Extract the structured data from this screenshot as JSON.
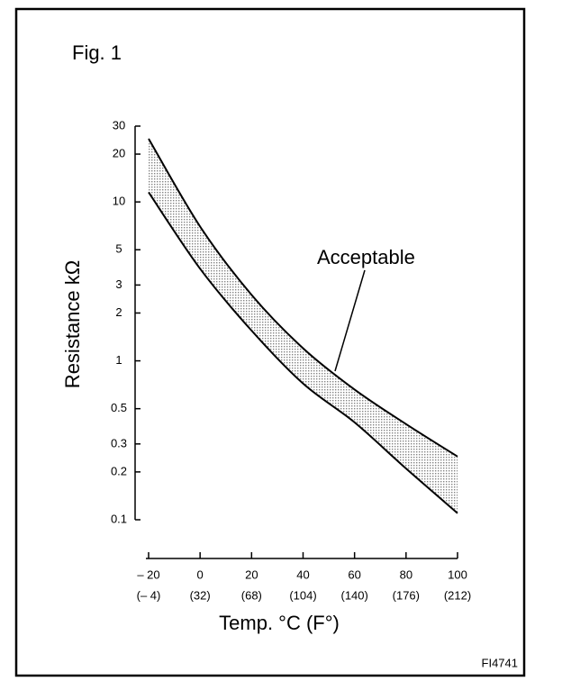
{
  "chart_data": {
    "type": "line",
    "title": "Fig. 1",
    "x_label": "Temp. °C (F°)",
    "y_label": "Resistance kΩ",
    "annotation": "Acceptable",
    "figure_code": "FI4741",
    "x": [
      -20,
      0,
      20,
      40,
      60,
      80,
      100
    ],
    "series": [
      {
        "color": "#000000",
        "values": [
          25,
          7,
          2.6,
          1.2,
          0.66,
          0.4,
          0.25
        ]
      },
      {
        "color": "#000000",
        "values": [
          11.5,
          3.8,
          1.55,
          0.72,
          0.41,
          0.21,
          0.11
        ]
      }
    ],
    "band_fill": "#bbbbbb",
    "xlim": [
      -20,
      100
    ],
    "xticks": [
      {
        "value": -20,
        "label": "– 20"
      },
      0,
      20,
      40,
      60,
      80,
      100
    ],
    "xtick_sublabels": [
      "(– 4)",
      "(32)",
      "(68)",
      "(104)",
      "(140)",
      "(176)",
      "(212)"
    ],
    "ylim": [
      0.1,
      30
    ],
    "y_scale": "log",
    "yticks": [
      30,
      20,
      10,
      5,
      3,
      2,
      1,
      0.5,
      0.3,
      0.2,
      0.1
    ]
  }
}
